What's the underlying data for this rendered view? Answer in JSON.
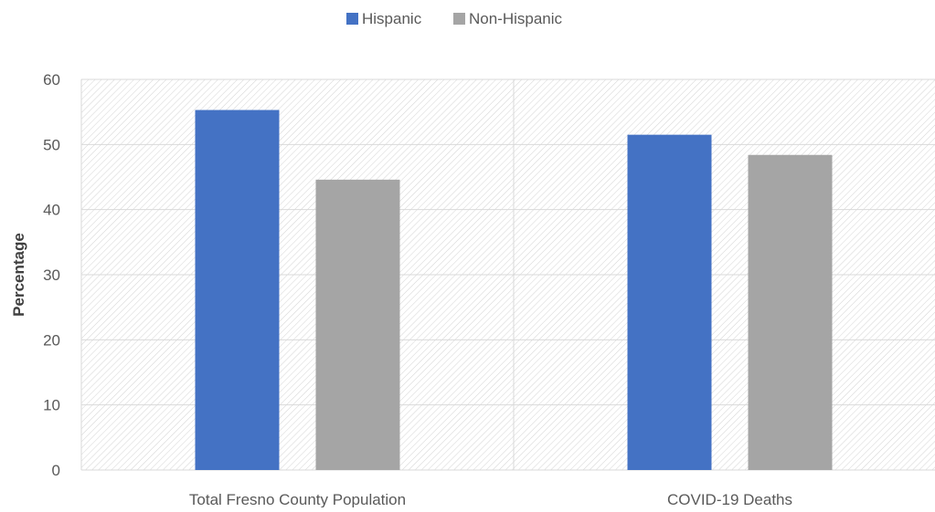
{
  "chart_data": {
    "type": "bar",
    "title": "",
    "xlabel": "",
    "ylabel": "Percentage",
    "ylim": [
      0,
      60
    ],
    "yticks": [
      0,
      10,
      20,
      30,
      40,
      50,
      60
    ],
    "grid": true,
    "legend_position": "top",
    "categories": [
      "Total Fresno County Population",
      "COVID-19 Deaths"
    ],
    "series": [
      {
        "name": "Hispanic",
        "color": "#4472C4",
        "values": [
          55.3,
          51.5
        ]
      },
      {
        "name": "Non-Hispanic",
        "color": "#A5A5A5",
        "values": [
          44.6,
          48.4
        ]
      }
    ]
  }
}
